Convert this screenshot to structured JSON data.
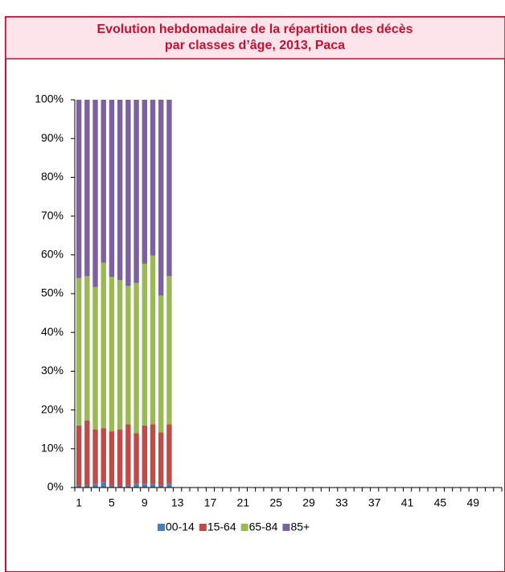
{
  "chart_data": {
    "type": "stacked-bar",
    "title": "Evolution hebdomadaire de la répartition des décès",
    "subtitle": "par classes d’âge, 2013, Paca",
    "categories": [
      1,
      null,
      null,
      null,
      5,
      null,
      null,
      null,
      9,
      null,
      null,
      null,
      13,
      null,
      null,
      null,
      17,
      null,
      null,
      null,
      21,
      null,
      null,
      null,
      25,
      null,
      null,
      null,
      29,
      null,
      null,
      null,
      33,
      null,
      null,
      null,
      37,
      null,
      null,
      null,
      41,
      null,
      null,
      null,
      45,
      null,
      null,
      null,
      49,
      null,
      null,
      null
    ],
    "series": [
      {
        "name": "00-14",
        "color": "#4a7ebb",
        "values": [
          0.5,
          0.5,
          1,
          1.3,
          0.5,
          0.5,
          0.5,
          1,
          1,
          1,
          0.5,
          1,
          null,
          null,
          null,
          null,
          null,
          null,
          null,
          null,
          null,
          null,
          null,
          null,
          null,
          null,
          null,
          null,
          null,
          null,
          null,
          null,
          null,
          null,
          null,
          null,
          null,
          null,
          null,
          null,
          null,
          null,
          null,
          null,
          null,
          null,
          null,
          null,
          null,
          null,
          null,
          null
        ]
      },
      {
        "name": "15-64",
        "color": "#be4b48",
        "values": [
          15.5,
          16.8,
          14,
          14,
          14,
          14.5,
          15.8,
          13,
          15,
          15.3,
          13.7,
          15.3,
          null,
          null,
          null,
          null,
          null,
          null,
          null,
          null,
          null,
          null,
          null,
          null,
          null,
          null,
          null,
          null,
          null,
          null,
          null,
          null,
          null,
          null,
          null,
          null,
          null,
          null,
          null,
          null,
          null,
          null,
          null,
          null,
          null,
          null,
          null,
          null,
          null,
          null,
          null,
          null
        ]
      },
      {
        "name": "65-84",
        "color": "#98b954",
        "values": [
          38,
          37.2,
          36.7,
          42.7,
          39.8,
          38.5,
          35.7,
          38.8,
          41.7,
          43.5,
          35.3,
          38.2,
          null,
          null,
          null,
          null,
          null,
          null,
          null,
          null,
          null,
          null,
          null,
          null,
          null,
          null,
          null,
          null,
          null,
          null,
          null,
          null,
          null,
          null,
          null,
          null,
          null,
          null,
          null,
          null,
          null,
          null,
          null,
          null,
          null,
          null,
          null,
          null,
          null,
          null,
          null,
          null
        ]
      },
      {
        "name": "85+",
        "color": "#7d60a0",
        "values": [
          46,
          45.5,
          48.3,
          42,
          45.7,
          46.5,
          48,
          47.2,
          42.3,
          40.2,
          50.5,
          45.5,
          null,
          null,
          null,
          null,
          null,
          null,
          null,
          null,
          null,
          null,
          null,
          null,
          null,
          null,
          null,
          null,
          null,
          null,
          null,
          null,
          null,
          null,
          null,
          null,
          null,
          null,
          null,
          null,
          null,
          null,
          null,
          null,
          null,
          null,
          null,
          null,
          null,
          null,
          null,
          null
        ]
      }
    ],
    "ylim": [
      0,
      100
    ],
    "yticks": [
      {
        "value": 0,
        "label": "0%"
      },
      {
        "value": 10,
        "label": "10%"
      },
      {
        "value": 20,
        "label": "20%"
      },
      {
        "value": 30,
        "label": "30%"
      },
      {
        "value": 40,
        "label": "40%"
      },
      {
        "value": 50,
        "label": "50%"
      },
      {
        "value": 60,
        "label": "60%"
      },
      {
        "value": 70,
        "label": "70%"
      },
      {
        "value": 80,
        "label": "80%"
      },
      {
        "value": 90,
        "label": "90%"
      },
      {
        "value": 100,
        "label": "100%"
      }
    ],
    "legend": "bottom"
  }
}
